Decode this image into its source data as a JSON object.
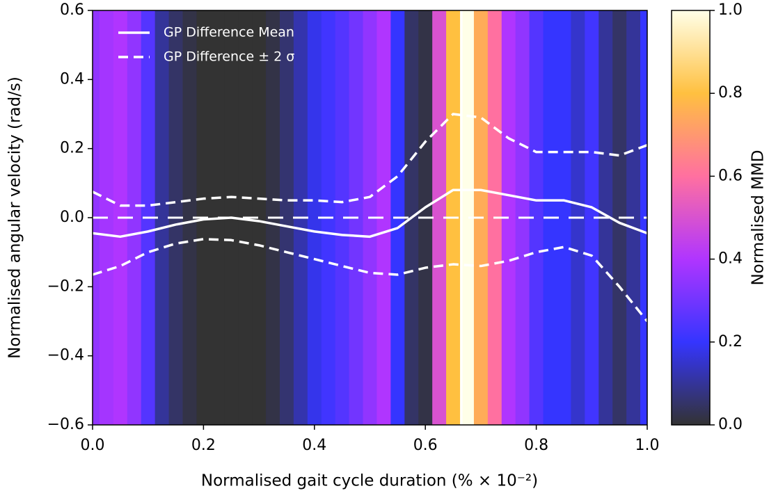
{
  "chart_data": {
    "type": "line",
    "xlabel": "Normalised gait cycle duration (% × 10⁻²)",
    "ylabel": "Normalised angular velocity (rad/s)",
    "colorbar_label": "Normalised MMD",
    "x": [
      0,
      0.05,
      0.1,
      0.15,
      0.2,
      0.25,
      0.3,
      0.35,
      0.4,
      0.45,
      0.5,
      0.55,
      0.6,
      0.65,
      0.7,
      0.75,
      0.8,
      0.85,
      0.9,
      0.95,
      1.0
    ],
    "series": [
      {
        "name": "GP Difference Mean",
        "color": "#ffffff",
        "style": "solid",
        "values": [
          -0.045,
          -0.055,
          -0.04,
          -0.02,
          -0.005,
          0.0,
          -0.01,
          -0.025,
          -0.04,
          -0.05,
          -0.055,
          -0.03,
          0.03,
          0.08,
          0.08,
          0.065,
          0.05,
          0.05,
          0.03,
          -0.015,
          -0.045
        ]
      },
      {
        "name": "GP Difference ± 2 σ",
        "color": "#ffffff",
        "style": "dashed",
        "values": [
          0.075,
          0.035,
          0.035,
          0.045,
          0.055,
          0.06,
          0.055,
          0.05,
          0.05,
          0.045,
          0.06,
          0.12,
          0.22,
          0.3,
          0.29,
          0.23,
          0.19,
          0.19,
          0.19,
          0.18,
          0.21
        ]
      },
      {
        "color": "#ffffff",
        "style": "dashed",
        "values": [
          -0.165,
          -0.14,
          -0.1,
          -0.075,
          -0.062,
          -0.065,
          -0.08,
          -0.1,
          -0.12,
          -0.14,
          -0.16,
          -0.165,
          -0.145,
          -0.135,
          -0.14,
          -0.125,
          -0.1,
          -0.085,
          -0.11,
          -0.2,
          -0.3
        ]
      }
    ],
    "mmd_x": [
      0,
      0.025,
      0.05,
      0.075,
      0.1,
      0.125,
      0.15,
      0.175,
      0.2,
      0.225,
      0.25,
      0.275,
      0.3,
      0.325,
      0.35,
      0.375,
      0.4,
      0.425,
      0.45,
      0.475,
      0.5,
      0.525,
      0.55,
      0.575,
      0.6,
      0.625,
      0.65,
      0.675,
      0.7,
      0.725,
      0.75,
      0.775,
      0.8,
      0.825,
      0.85,
      0.875,
      0.9,
      0.925,
      0.95,
      0.975,
      1.0
    ],
    "mmd": [
      0.35,
      0.38,
      0.4,
      0.35,
      0.25,
      0.1,
      0.05,
      0.02,
      0.0,
      0.0,
      0.0,
      0.0,
      0.0,
      0.02,
      0.06,
      0.12,
      0.18,
      0.22,
      0.25,
      0.3,
      0.35,
      0.4,
      0.2,
      0.05,
      0.02,
      0.5,
      0.8,
      1.0,
      0.75,
      0.6,
      0.4,
      0.35,
      0.25,
      0.2,
      0.2,
      0.15,
      0.22,
      0.1,
      0.05,
      0.1,
      0.2
    ],
    "colormap": [
      [
        0,
        "#333333"
      ],
      [
        0.2,
        "#3535ff"
      ],
      [
        0.4,
        "#b035ff"
      ],
      [
        0.6,
        "#ff70a0"
      ],
      [
        0.8,
        "#ffc040"
      ],
      [
        1.0,
        "#ffffe8"
      ]
    ],
    "hline": 0,
    "vline": 0.665,
    "xlim": [
      0,
      1
    ],
    "ylim": [
      -0.6,
      0.6
    ],
    "clim": [
      0,
      1
    ],
    "xticks": [
      {
        "value": 0,
        "label": "0.0"
      },
      {
        "value": 0.2,
        "label": "0.2"
      },
      {
        "value": 0.4,
        "label": "0.4"
      },
      {
        "value": 0.6,
        "label": "0.6"
      },
      {
        "value": 0.8,
        "label": "0.8"
      },
      {
        "value": 1.0,
        "label": "1.0"
      }
    ],
    "yticks": [
      {
        "value": -0.6,
        "label": "−0.6"
      },
      {
        "value": -0.4,
        "label": "−0.4"
      },
      {
        "value": -0.2,
        "label": "−0.2"
      },
      {
        "value": 0,
        "label": "0.0"
      },
      {
        "value": 0.2,
        "label": "0.2"
      },
      {
        "value": 0.4,
        "label": "0.4"
      },
      {
        "value": 0.6,
        "label": "0.6"
      }
    ],
    "cticks": [
      {
        "value": 0,
        "label": "0.0"
      },
      {
        "value": 0.2,
        "label": "0.2"
      },
      {
        "value": 0.4,
        "label": "0.4"
      },
      {
        "value": 0.6,
        "label": "0.6"
      },
      {
        "value": 0.8,
        "label": "0.8"
      },
      {
        "value": 1.0,
        "label": "1.0"
      }
    ],
    "legend": "upper left"
  }
}
